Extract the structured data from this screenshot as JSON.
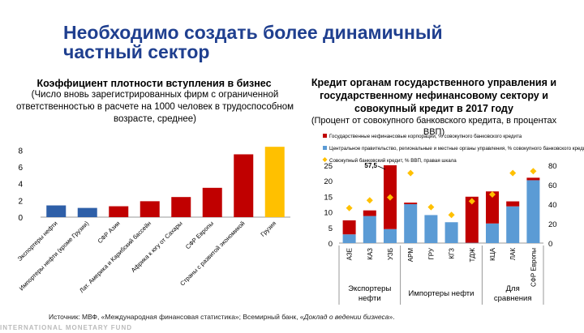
{
  "title": "Необходимо создать более динамичный частный сектор",
  "source_prefix": "Источник: МВФ, «Международная финансовая статистика»; Всемирный банк, «",
  "source_italic": "Доклад о ведении бизнеса",
  "source_suffix": "».",
  "footer": "INTERNATIONAL MONETARY FUND",
  "chart_data": [
    {
      "type": "bar",
      "title": "Коэффициент плотности вступления в бизнес",
      "subtitle": "(Число вновь зарегистрированных фирм с ограниченной ответственностью в расчете на 1000 человек в трудоспособном возрасте, среднее)",
      "categories": [
        "Экспортеры нефти",
        "Импортеры нефти (кроме Грузии)",
        "СФР Азии",
        "Лат. Америка и Карибский бассейн",
        "Африка к югу от Сахары",
        "СФР Европы",
        "Страны с развитой экономикой",
        "Грузия"
      ],
      "values": [
        1.4,
        1.1,
        1.3,
        1.9,
        2.4,
        3.5,
        7.5,
        8.4
      ],
      "colors": [
        "#2e5fa8",
        "#2e5fa8",
        "#c00000",
        "#c00000",
        "#c00000",
        "#c00000",
        "#c00000",
        "#ffc000"
      ],
      "yticks": [
        "0",
        "2",
        "4",
        "6",
        "8"
      ],
      "ylim": [
        0,
        10
      ]
    },
    {
      "type": "bar",
      "stacked": true,
      "title": "Кредит органам государственного управления и государственному нефинансовому сектору и совокупный кредит в 2017 году",
      "subtitle": "(Процент от совокупного банковского кредита, в процентах ВВП)",
      "categories": [
        "АЗЕ",
        "КАЗ",
        "УЗБ",
        "АРМ",
        "ГРУ",
        "КГЗ",
        "ТДЖ",
        "КЦА",
        "ЛАК",
        "СФР Европы"
      ],
      "groups": [
        {
          "label": "Экспортеры нефти",
          "categories": [
            "АЗЕ",
            "КАЗ",
            "УЗБ"
          ]
        },
        {
          "label": "Импортеры нефти",
          "categories": [
            "АРМ",
            "ГРУ",
            "КГЗ",
            "ТДЖ"
          ]
        },
        {
          "label": "Для сравнения",
          "categories": [
            "КЦА",
            "ЛАК",
            "СФР Европы"
          ]
        }
      ],
      "series": [
        {
          "name": "Центральное правительство, региональные и местные органы управления, % совокупного банковского кредита",
          "color": "#5b9bd5",
          "values": [
            2.8,
            8.7,
            4.5,
            12.5,
            9.0,
            6.7,
            0.1,
            6.3,
            11.8,
            20.2
          ]
        },
        {
          "name": "Государственные нефинансовые корпорации, % совокупного банковского кредита",
          "color": "#c00000",
          "values": [
            4.5,
            1.8,
            53.0,
            0.5,
            0.0,
            0.0,
            14.8,
            10.3,
            1.6,
            0.8
          ]
        },
        {
          "name": "Совокупный банковский кредит, % ВВП, правая шкала",
          "color": "#ffc000",
          "marker": "diamond",
          "axis": "right",
          "values": [
            36,
            44,
            47,
            72,
            37,
            29,
            43,
            50,
            72,
            74
          ]
        }
      ],
      "annotation": "57,5",
      "yticks_left": [
        "0",
        "5",
        "10",
        "15",
        "20",
        "25"
      ],
      "yticks_right": [
        "0",
        "20",
        "40",
        "60",
        "80"
      ],
      "ylim_left": [
        0,
        25
      ],
      "ylim_right": [
        0,
        80
      ]
    }
  ]
}
